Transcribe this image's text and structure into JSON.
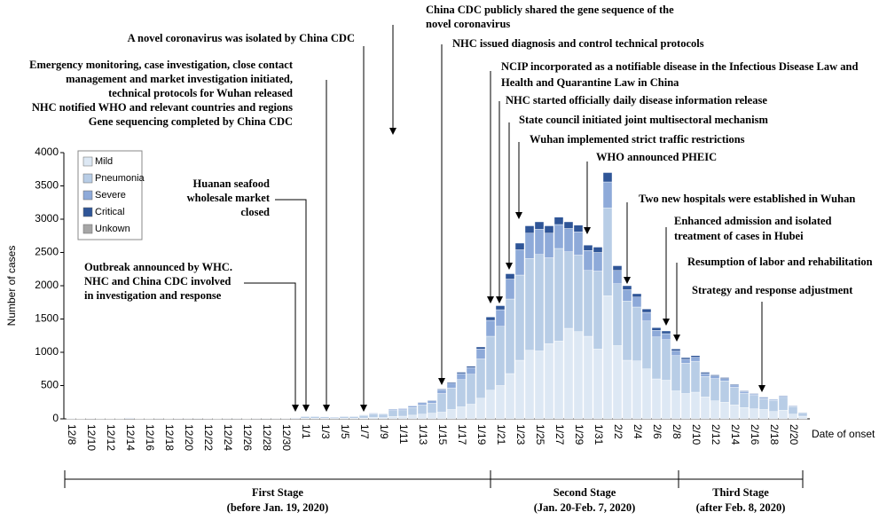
{
  "chart_data": {
    "type": "stacked-bar",
    "ylabel": "Number of cases",
    "xlabel": "Date of onset",
    "ylim": [
      0,
      4000
    ],
    "yticks": [
      0,
      500,
      1000,
      1500,
      2000,
      2500,
      3000,
      3500,
      4000
    ],
    "categories": [
      "12/8",
      null,
      "12/10",
      null,
      "12/12",
      null,
      "12/14",
      null,
      "12/16",
      null,
      "12/18",
      null,
      "12/20",
      null,
      "12/22",
      null,
      "12/24",
      null,
      "12/26",
      null,
      "12/28",
      null,
      "12/30",
      null,
      "1/1",
      null,
      "1/3",
      null,
      "1/5",
      null,
      "1/7",
      null,
      "1/9",
      null,
      "1/11",
      null,
      "1/13",
      null,
      "1/15",
      null,
      "1/17",
      null,
      "1/19",
      null,
      "1/21",
      null,
      "1/23",
      null,
      "1/25",
      null,
      "1/27",
      null,
      "1/29",
      null,
      "1/31",
      null,
      "2/2",
      null,
      "2/4",
      null,
      "2/6",
      null,
      "2/8",
      null,
      "2/10",
      null,
      "2/12",
      null,
      "2/14",
      null,
      "2/16",
      null,
      "2/18",
      null,
      "2/20",
      null
    ],
    "series": [
      {
        "name": "Mild",
        "color": "#dde8f4",
        "values": [
          1,
          1,
          2,
          1,
          1,
          1,
          3,
          1,
          1,
          2,
          1,
          2,
          2,
          3,
          2,
          1,
          2,
          2,
          1,
          2,
          3,
          2,
          2,
          3,
          8,
          8,
          7,
          6,
          8,
          8,
          12,
          20,
          18,
          35,
          40,
          55,
          70,
          85,
          100,
          140,
          180,
          220,
          310,
          430,
          500,
          680,
          880,
          1030,
          1020,
          1130,
          1170,
          1360,
          1310,
          1240,
          1050,
          1850,
          1100,
          880,
          870,
          750,
          600,
          580,
          420,
          380,
          400,
          330,
          270,
          250,
          210,
          170,
          150,
          140,
          110,
          130,
          70,
          40
        ]
      },
      {
        "name": "Pneumonia",
        "color": "#b8cde6",
        "values": [
          6,
          3,
          5,
          4,
          2,
          4,
          11,
          2,
          4,
          7,
          4,
          5,
          7,
          8,
          5,
          4,
          7,
          7,
          4,
          7,
          8,
          7,
          7,
          11,
          26,
          26,
          22,
          19,
          26,
          26,
          38,
          55,
          50,
          90,
          95,
          115,
          137,
          152,
          280,
          325,
          410,
          450,
          590,
          810,
          890,
          1120,
          1280,
          1380,
          1450,
          1290,
          1390,
          1150,
          1150,
          990,
          1170,
          1320,
          930,
          890,
          810,
          720,
          630,
          610,
          530,
          455,
          465,
          305,
          335,
          320,
          268,
          215,
          202,
          162,
          169,
          192,
          116,
          53
        ]
      },
      {
        "name": "Severe",
        "color": "#8eaad9",
        "values": [
          1,
          1,
          1,
          1,
          1,
          1,
          1,
          1,
          1,
          1,
          1,
          1,
          1,
          1,
          1,
          1,
          1,
          1,
          1,
          1,
          1,
          1,
          1,
          1,
          5,
          5,
          5,
          4,
          5,
          5,
          8,
          12,
          10,
          20,
          20,
          25,
          35,
          35,
          60,
          70,
          90,
          100,
          150,
          240,
          250,
          300,
          380,
          380,
          380,
          370,
          360,
          350,
          350,
          300,
          280,
          390,
          200,
          170,
          150,
          130,
          100,
          90,
          70,
          60,
          60,
          45,
          40,
          35,
          30,
          25,
          20,
          20,
          15,
          20,
          10,
          5
        ]
      },
      {
        "name": "Critical",
        "color": "#2f5597",
        "values": [
          0,
          0,
          0,
          0,
          0,
          0,
          0,
          0,
          0,
          0,
          0,
          0,
          0,
          0,
          0,
          0,
          0,
          0,
          0,
          0,
          0,
          0,
          0,
          0,
          1,
          1,
          1,
          1,
          1,
          1,
          2,
          3,
          2,
          5,
          5,
          5,
          8,
          8,
          10,
          15,
          20,
          20,
          30,
          50,
          60,
          80,
          100,
          110,
          110,
          110,
          110,
          100,
          100,
          80,
          80,
          140,
          70,
          60,
          50,
          50,
          40,
          40,
          30,
          25,
          25,
          20,
          15,
          15,
          12,
          10,
          8,
          8,
          6,
          8,
          4,
          2
        ]
      },
      {
        "name": "Unkown",
        "color": "#a6a6a6",
        "values": [
          0,
          0,
          0,
          0,
          0,
          0,
          0,
          0,
          0,
          0,
          0,
          0,
          0,
          0,
          0,
          0,
          0,
          0,
          0,
          0,
          0,
          0,
          0,
          0,
          0,
          0,
          0,
          0,
          0,
          0,
          0,
          0,
          0,
          0,
          0,
          0,
          0,
          0,
          0,
          0,
          0,
          0,
          0,
          0,
          0,
          0,
          0,
          0,
          0,
          0,
          0,
          0,
          0,
          0,
          0,
          0,
          0,
          0,
          0,
          0,
          0,
          0,
          0,
          0,
          0,
          0,
          0,
          0,
          0,
          0,
          0,
          0,
          0,
          0,
          0,
          0
        ]
      }
    ],
    "annotations": [
      [
        "China CDC publicly shared the gene sequence of the",
        "novel coronavirus"
      ],
      [
        "A novel coronavirus was isolated by China CDC"
      ],
      [
        "NHC issued diagnosis and control technical protocols"
      ],
      [
        "Emergency monitoring, case investigation, close contact",
        "management and market investigation initiated,",
        "technical protocols for Wuhan released",
        "NHC notified  WHO and relevant countries and regions",
        "Gene sequencing completed by China CDC"
      ],
      [
        "Huanan seafood",
        "wholesale market",
        "closed"
      ],
      [
        "Outbreak announced by WHC.",
        "NHC and China CDC involved",
        "in investigation  and response"
      ],
      [
        "NCIP incorporated as a notifiable disease in the Infectious Disease Law and",
        "Health and Quarantine Law in China"
      ],
      [
        "NHC started officially daily disease information release"
      ],
      [
        "State council initiated joint multisectoral mechanism"
      ],
      [
        "Wuhan implemented strict traffic restrictions"
      ],
      [
        "WHO announced PHEIC"
      ],
      [
        "Two new hospitals were established  in Wuhan"
      ],
      [
        "Enhanced admission and isolated",
        "treatment of cases in Hubei"
      ],
      [
        "Resumption of labor and rehabilitation"
      ],
      [
        "Strategy and response adjustment"
      ]
    ],
    "stages": [
      {
        "name": "First Stage",
        "period": "(before Jan. 19, 2020)"
      },
      {
        "name": "Second Stage",
        "period": "(Jan. 20-Feb. 7, 2020)"
      },
      {
        "name": "Third Stage",
        "period": "(after Feb. 8, 2020)"
      }
    ]
  }
}
